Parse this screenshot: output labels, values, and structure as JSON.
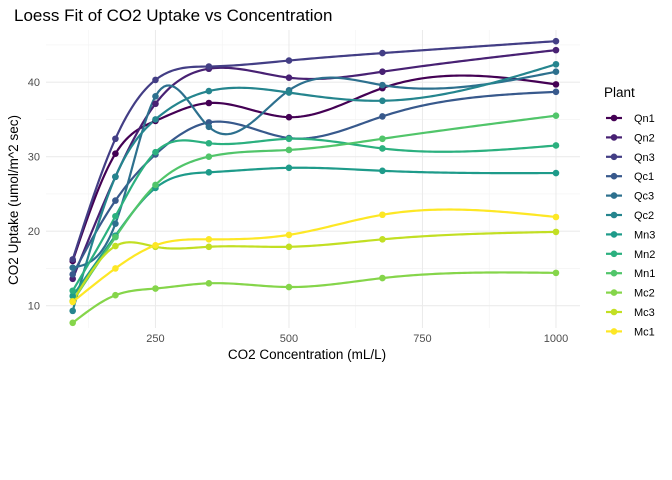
{
  "chart_data": {
    "type": "scatter",
    "title": "Loess Fit of CO2 Uptake vs Concentration",
    "xlabel": "CO2 Concentration (mL/L)",
    "ylabel": "CO2 Uptake (umol/m^2 sec)",
    "xlim": [
      45,
      1045
    ],
    "ylim": [
      7,
      47
    ],
    "x_ticks": [
      250,
      500,
      750,
      1000
    ],
    "x_minor": [
      125,
      375,
      625,
      875
    ],
    "y_ticks": [
      10,
      20,
      30,
      40
    ],
    "y_minor": [
      15,
      25,
      35,
      45
    ],
    "grid": true,
    "legend_title": "Plant",
    "legend_position": "right",
    "x": [
      95,
      175,
      250,
      350,
      500,
      675,
      1000
    ],
    "series": [
      {
        "name": "Qn1",
        "color": "#440154",
        "values": [
          16.0,
          30.4,
          34.8,
          37.2,
          35.3,
          39.2,
          39.7
        ]
      },
      {
        "name": "Qn2",
        "color": "#482173",
        "values": [
          13.6,
          27.3,
          37.1,
          41.8,
          40.6,
          41.4,
          44.3
        ]
      },
      {
        "name": "Qn3",
        "color": "#433E85",
        "values": [
          16.2,
          32.4,
          40.3,
          42.1,
          42.9,
          43.9,
          45.5
        ]
      },
      {
        "name": "Qc1",
        "color": "#38598C",
        "values": [
          14.2,
          24.1,
          30.3,
          34.6,
          32.5,
          35.4,
          38.7
        ]
      },
      {
        "name": "Qc3",
        "color": "#2D708E",
        "values": [
          15.1,
          21.0,
          38.1,
          34.0,
          38.9,
          39.6,
          41.4
        ]
      },
      {
        "name": "Qc2",
        "color": "#25858E",
        "values": [
          9.3,
          27.3,
          35.0,
          38.8,
          38.6,
          37.5,
          42.4
        ]
      },
      {
        "name": "Mn3",
        "color": "#1E9B8A",
        "values": [
          11.3,
          19.4,
          25.8,
          27.9,
          28.5,
          28.1,
          27.8
        ]
      },
      {
        "name": "Mn2",
        "color": "#2BB07F",
        "values": [
          12.0,
          22.0,
          30.6,
          31.8,
          32.4,
          31.1,
          31.5
        ]
      },
      {
        "name": "Mn1",
        "color": "#51C56A",
        "values": [
          10.6,
          19.2,
          26.2,
          30.0,
          30.9,
          32.4,
          35.5
        ]
      },
      {
        "name": "Mc2",
        "color": "#85D54A",
        "values": [
          7.7,
          11.4,
          12.3,
          13.0,
          12.5,
          13.7,
          14.4
        ]
      },
      {
        "name": "Mc3",
        "color": "#C2DF23",
        "values": [
          10.6,
          18.0,
          17.9,
          17.9,
          17.9,
          18.9,
          19.9
        ]
      },
      {
        "name": "Mc1",
        "color": "#FDE725",
        "values": [
          10.5,
          15.0,
          18.1,
          18.9,
          19.5,
          22.2,
          21.9
        ]
      }
    ]
  }
}
